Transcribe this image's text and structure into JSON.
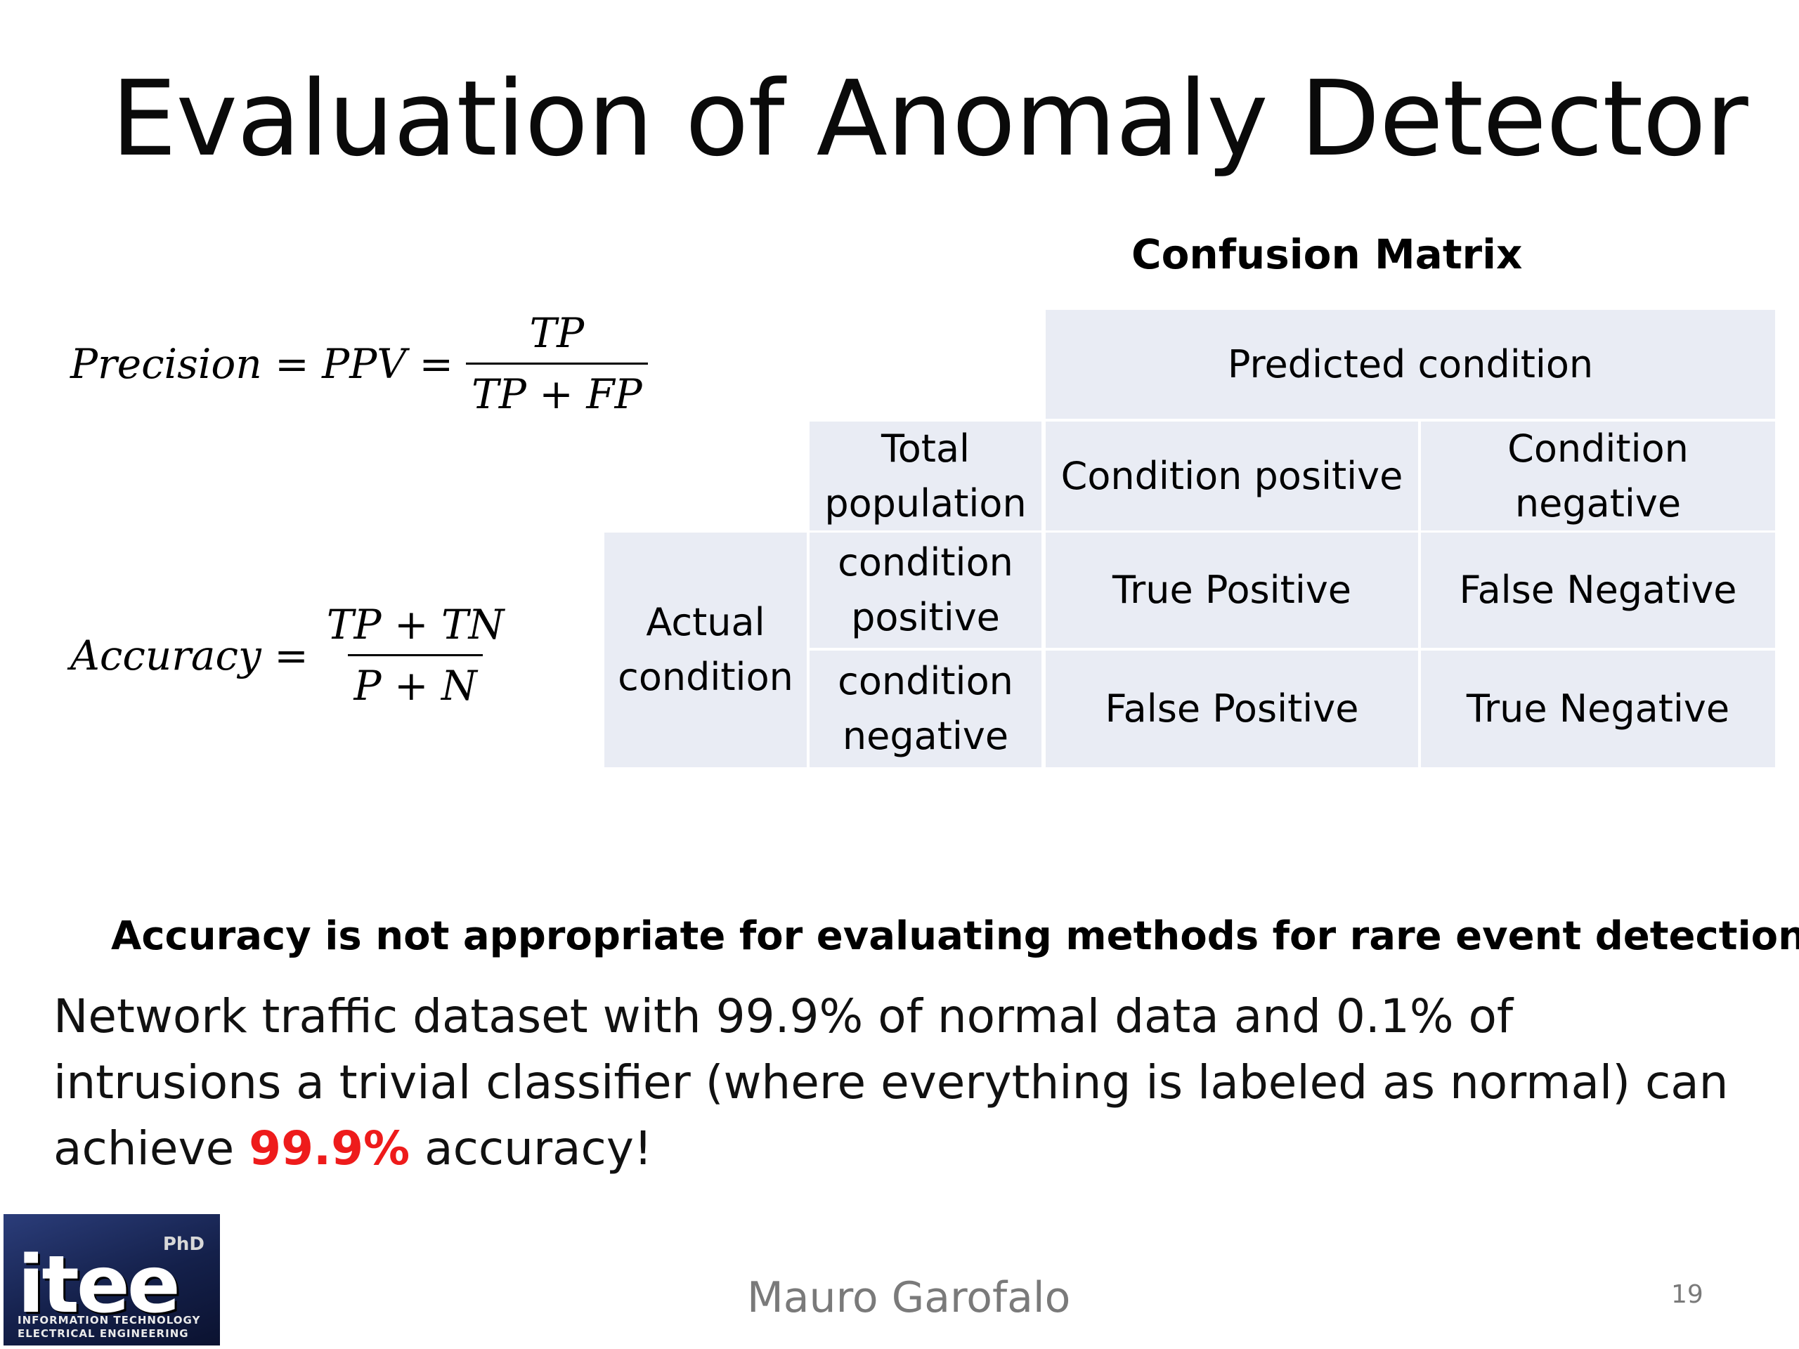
{
  "slide": {
    "title": "Evaluation of Anomaly Detector",
    "confusion_matrix_title": "Confusion Matrix"
  },
  "formulas": {
    "precision": {
      "lhs": "Precision = PPV =",
      "numerator": "TP",
      "denominator": "TP + FP"
    },
    "accuracy": {
      "lhs": "Accuracy =",
      "numerator": "TP + TN",
      "denominator": "P + N"
    }
  },
  "matrix": {
    "predicted_condition": "Predicted condition",
    "total_population": "Total population",
    "predicted_positive": "Condition positive",
    "predicted_negative": "Condition negative",
    "actual_condition": "Actual condition",
    "actual_positive": "condition positive",
    "actual_negative": "condition negative",
    "true_positive": "True Positive",
    "false_negative": "False Negative",
    "false_positive": "False Positive",
    "true_negative": "True Negative",
    "cell_color": "#e9ecf4"
  },
  "note": {
    "heading": "Accuracy is not appropriate for evaluating methods for rare event detection",
    "body_before": "Network traffic dataset with 99.9% of normal data and 0.1% of intrusions a trivial classifier (where everything is labeled as normal) can achieve ",
    "highlight": "99.9%",
    "body_after": " accuracy!",
    "highlight_color": "#ee1b1b"
  },
  "footer": {
    "logo_word": "itee",
    "logo_phd": "PhD",
    "logo_line1": "INFORMATION TECHNOLOGY",
    "logo_line2": "ELECTRICAL ENGINEERING",
    "author": "Mauro Garofalo",
    "page_number": "19"
  }
}
